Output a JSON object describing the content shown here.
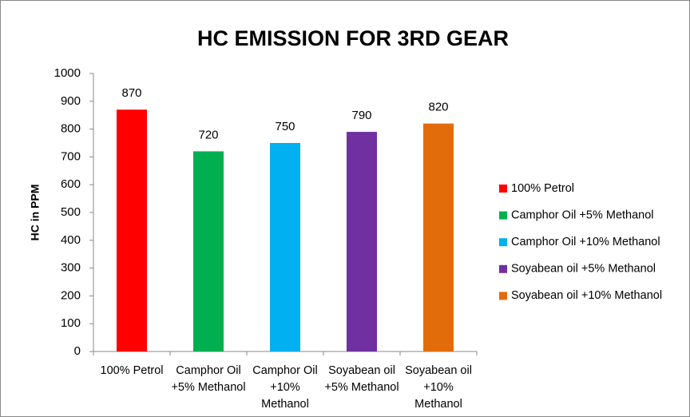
{
  "chart_data": {
    "type": "bar",
    "title": "HC EMISSION FOR 3RD GEAR",
    "y_label": "HC in PPM",
    "categories": [
      "100% Petrol",
      "Camphor Oil +5% Methanol",
      "Camphor Oil +10% Methanol",
      "Soyabean oil +5% Methanol",
      "Soyabean oil +10% Methanol"
    ],
    "values": [
      870,
      720,
      750,
      790,
      820
    ],
    "colors": [
      "#ff0000",
      "#00b050",
      "#00b0f0",
      "#7030a0",
      "#e36c0a"
    ],
    "ylim": [
      0,
      1000
    ],
    "yticks": [
      0,
      100,
      200,
      300,
      400,
      500,
      600,
      700,
      800,
      900,
      1000
    ],
    "grid": false,
    "legend": "right"
  }
}
